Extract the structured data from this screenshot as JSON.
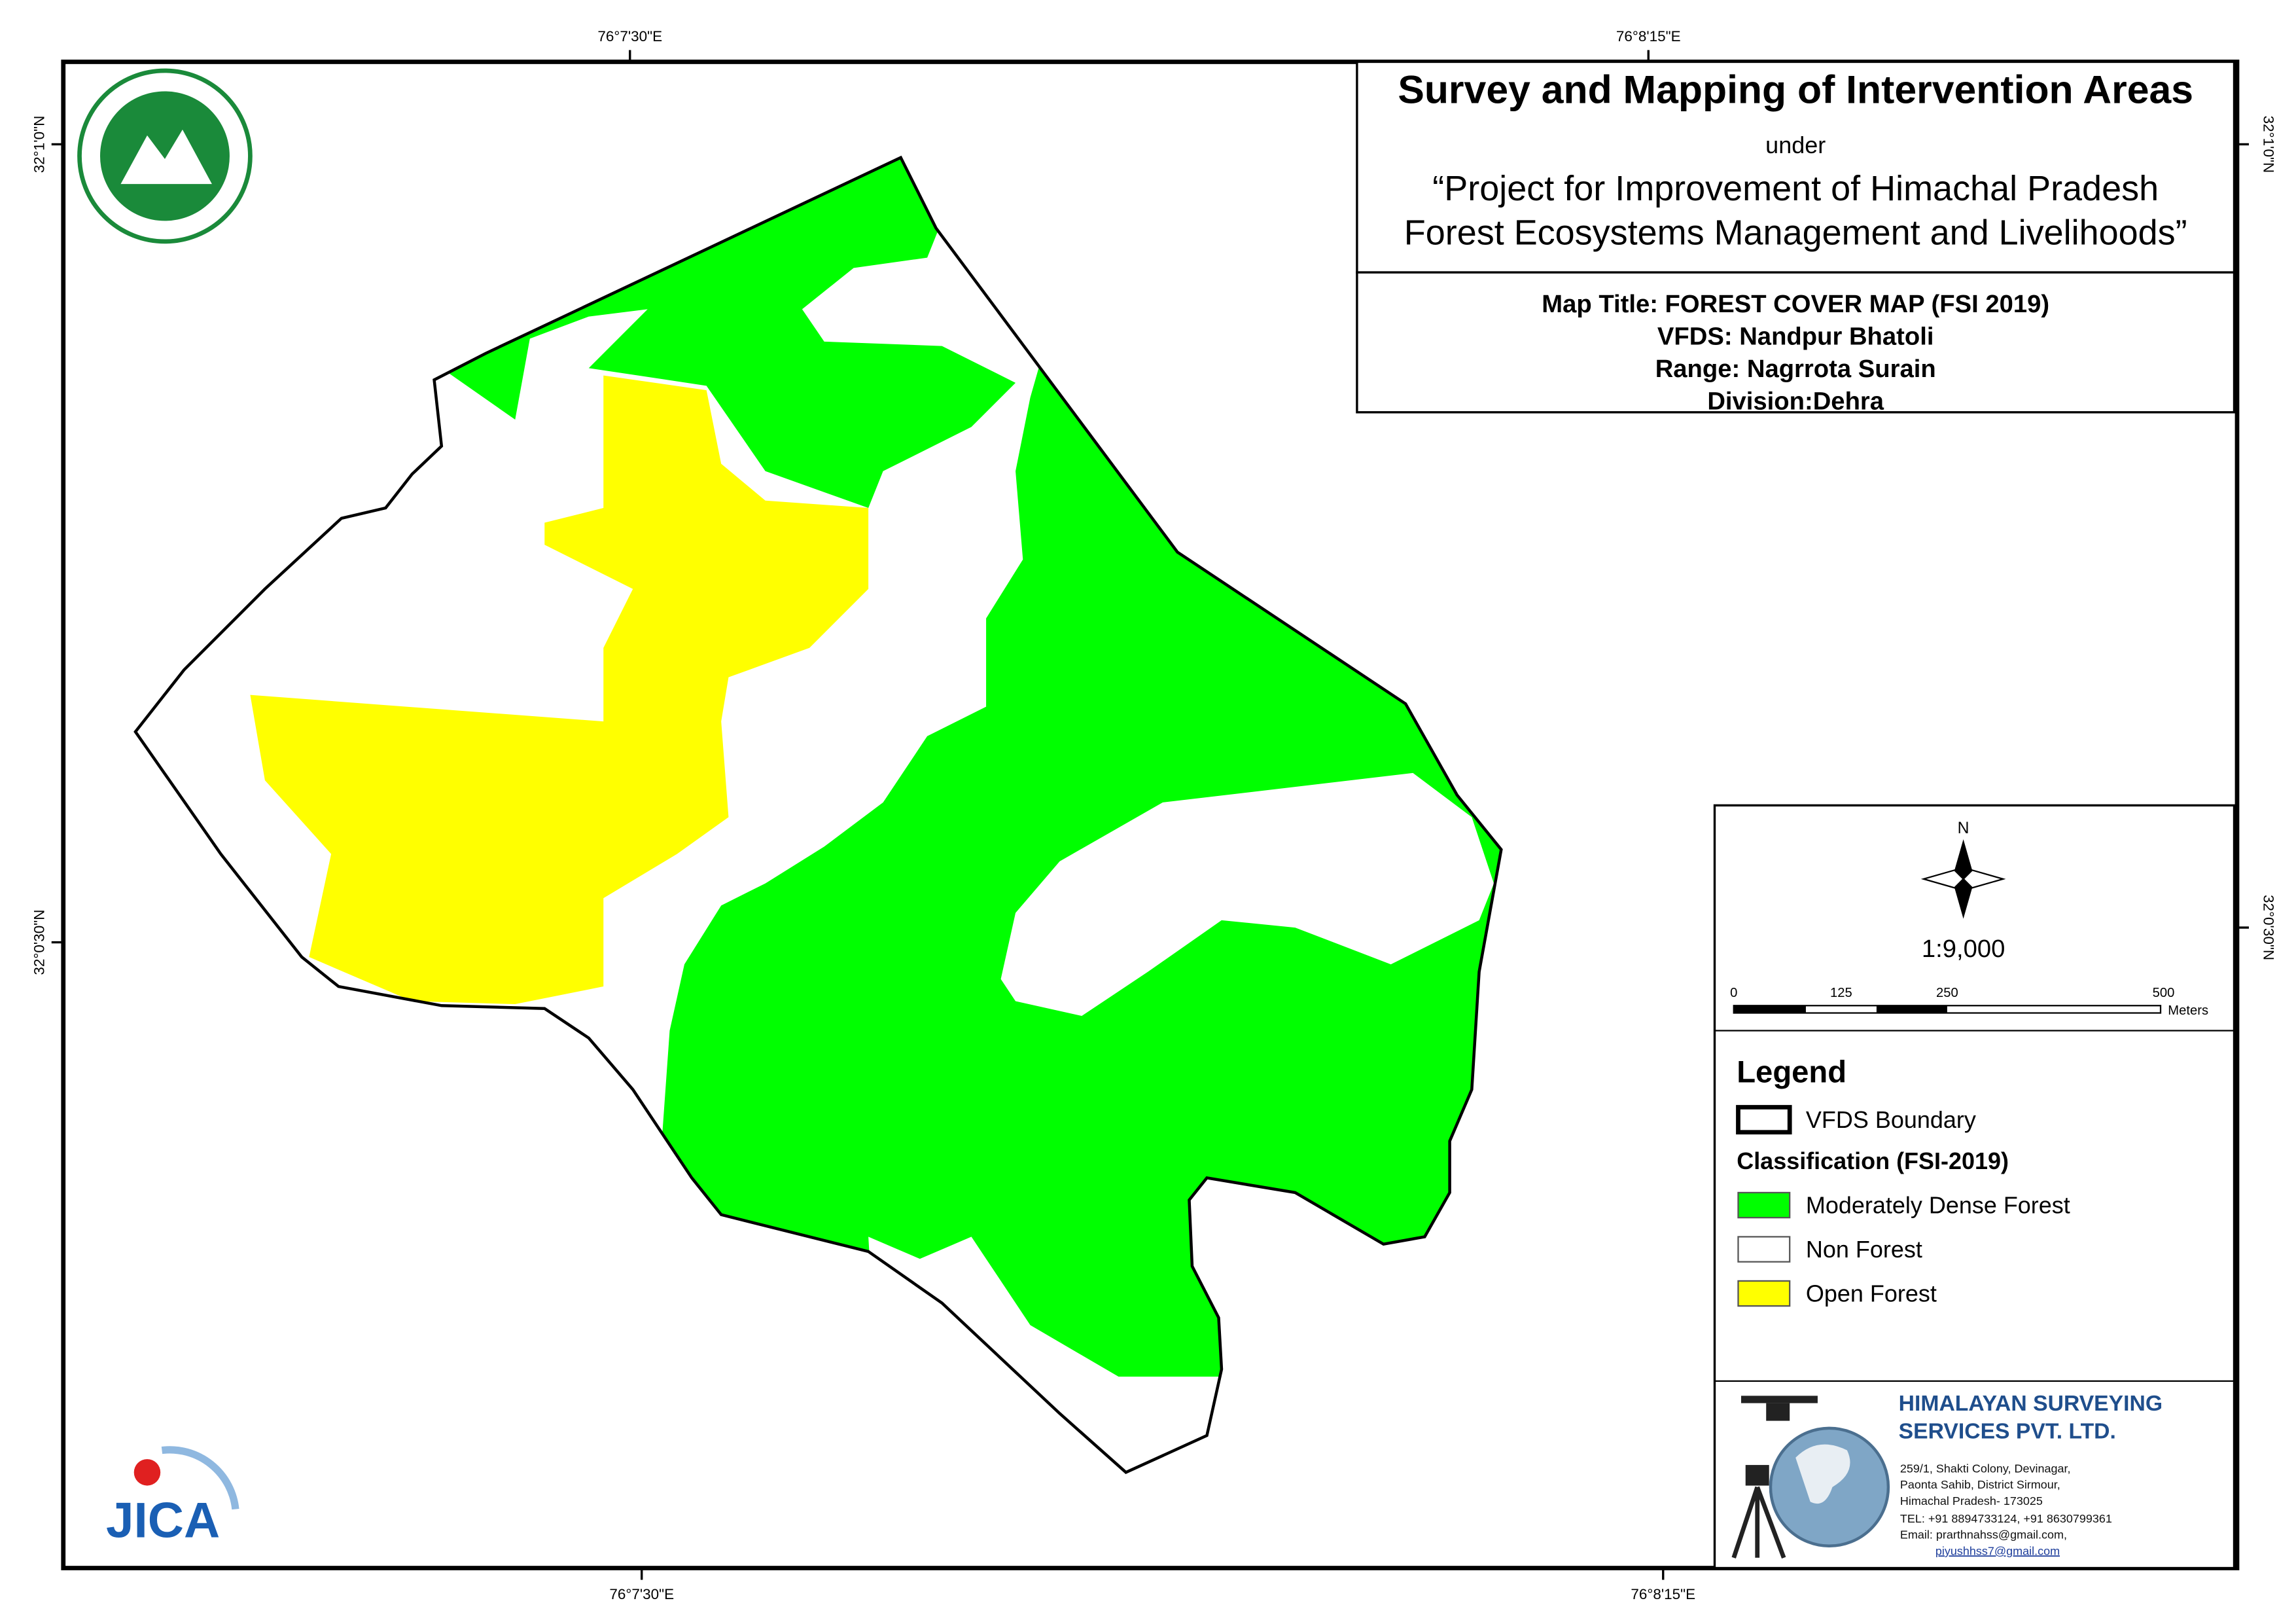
{
  "header": {
    "title": "Survey and Mapping of Intervention Areas",
    "under": "under",
    "project": [
      "“Project for Improvement of Himachal Pradesh",
      "Forest Ecosystems Management and Livelihoods”"
    ]
  },
  "map_info": [
    "Map Title: FOREST COVER MAP (FSI 2019)",
    "VFDS: Nandpur Bhatoli",
    "Range: Nagrrota Surain",
    "Division:Dehra"
  ],
  "grid_labels": {
    "top": [
      "76°7'30\"E",
      "76°8'15\"E"
    ],
    "bottom": [
      "76°7'30\"E",
      "76°8'15\"E"
    ],
    "left": [
      "32°1'0\"N",
      "32°0'30\"N"
    ],
    "right": [
      "32°1'0\"N",
      "32°0'30\"N"
    ]
  },
  "north": "N",
  "scale": "1:9,000",
  "scalebar": {
    "labels": [
      "0",
      "125",
      "250",
      "500"
    ],
    "unit": "Meters"
  },
  "legend": {
    "title": "Legend",
    "boundary": "VFDS Boundary",
    "classification": "Classification (FSI-2019)",
    "items": [
      "Moderately Dense Forest",
      "Non Forest",
      "Open Forest"
    ]
  },
  "logos": {
    "jica": "JICA"
  },
  "company": {
    "name": [
      "HIMALAYAN SURVEYING",
      "SERVICES PVT. LTD."
    ],
    "address": [
      "259/1, Shakti Colony, Devinagar,",
      "Paonta Sahib, District Sirmour,",
      "Himachal Pradesh- 173025",
      "TEL: +91 8894733124, +91 8630799361",
      "Email: prarthnahss@gmail.com,",
      "piyushhss7@gmail.com"
    ]
  }
}
